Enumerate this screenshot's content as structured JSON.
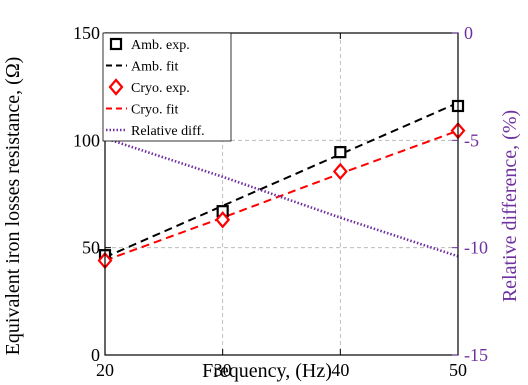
{
  "chart_data": {
    "type": "line",
    "x": [
      20,
      30,
      40,
      50
    ],
    "xlabel": "Frequency, (Hz)",
    "ylabel": "Equivalent iron losses resistance, (Ω)",
    "y2label": "Relative difference, (%)",
    "xlim": [
      20,
      50
    ],
    "ylim": [
      0,
      150
    ],
    "y2lim": [
      -15,
      0
    ],
    "xticks": [
      "20",
      "30",
      "40",
      "50"
    ],
    "yticks": [
      "0",
      "50",
      "100",
      "150"
    ],
    "y2ticks": [
      "0",
      "-5",
      "-10",
      "-15"
    ],
    "grid": true,
    "legend_position": "top-left",
    "series": [
      {
        "name": "Amb. exp.",
        "axis": "left",
        "style": "markers-square",
        "color": "#000000",
        "values": [
          46.5,
          67,
          94.5,
          116
        ]
      },
      {
        "name": "Amb. fit",
        "axis": "left",
        "style": "dashed",
        "color": "#000000",
        "values": [
          45.5,
          69.5,
          93.5,
          117.5
        ]
      },
      {
        "name": "Cryo. exp.",
        "axis": "left",
        "style": "markers-diamond",
        "color": "#ff0000",
        "values": [
          44,
          63,
          85.5,
          104.5
        ]
      },
      {
        "name": "Cryo. fit",
        "axis": "left",
        "style": "dashed",
        "color": "#ff0000",
        "values": [
          44,
          64,
          84.5,
          104.5
        ]
      },
      {
        "name": "Relative diff.",
        "axis": "right",
        "style": "dotted",
        "color": "#7030a0",
        "values": [
          -4.9,
          -6.7,
          -8.6,
          -10.4
        ]
      }
    ]
  }
}
